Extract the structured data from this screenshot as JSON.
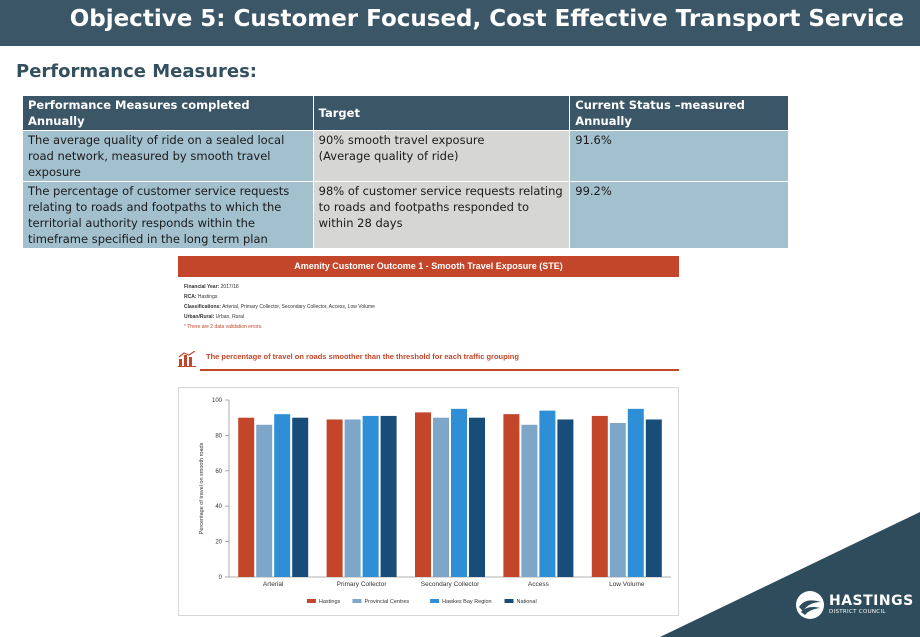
{
  "slide": {
    "title": "Objective 5: Customer Focused, Cost Effective Transport Service",
    "subtitle": "Performance Measures:"
  },
  "table": {
    "headers": [
      "Performance Measures completed Annually",
      "Target",
      "Current Status –measured Annually"
    ],
    "rows": [
      {
        "measure": "The average quality of ride on a sealed local road network, measured by smooth travel exposure",
        "target_line1": "90% smooth travel exposure",
        "target_line2": "(Average quality of ride)",
        "status": "91.6%"
      },
      {
        "measure": "The percentage of customer service requests relating to roads and footpaths to which the territorial authority responds within the timeframe specified in the long term plan",
        "target_line1": "98% of customer service requests relating to roads and footpaths responded to within 28 days",
        "target_line2": "",
        "status": "99.2%"
      }
    ]
  },
  "panel": {
    "header": "Amenity Customer Outcome 1 - Smooth Travel Exposure (STE)",
    "meta": {
      "financial_year_label": "Financial Year:",
      "financial_year": "2017/18",
      "rca_label": "RCA:",
      "rca": "Hastings",
      "classifications_label": "Classifications:",
      "classifications": "Arterial, Primary Collector, Secondary Collector, Access, Low Volume",
      "urban_rural_label": "Urban/Rural:",
      "urban_rural": "Urban, Rural",
      "warning": "* There are 2 data validation errors."
    },
    "section_title": "The percentage of travel on roads smoother than the threshold for each traffic grouping",
    "section_icon": "bar-chart-icon"
  },
  "chart_data": {
    "type": "bar",
    "ylabel": "Percentage of travel on smooth roads",
    "ylim": [
      0,
      100
    ],
    "yticks": [
      0,
      20,
      40,
      60,
      80,
      100
    ],
    "categories": [
      "Arterial",
      "Primary Collector",
      "Secondary Collector",
      "Access",
      "Low Volume"
    ],
    "series": [
      {
        "name": "Hastings",
        "color": "#c3462a",
        "values": [
          90,
          89,
          93,
          92,
          91
        ]
      },
      {
        "name": "Provincial Centres",
        "color": "#7ea6c9",
        "values": [
          86,
          89,
          90,
          86,
          87
        ]
      },
      {
        "name": "Hawkes Bay Region",
        "color": "#2f8fd6",
        "values": [
          92,
          91,
          95,
          94,
          95
        ]
      },
      {
        "name": "National",
        "color": "#184d7a",
        "values": [
          90,
          91,
          90,
          89,
          89
        ]
      }
    ],
    "legend": "bottom",
    "grid": false
  },
  "logo": {
    "name": "HASTINGS",
    "subname": "DISTRICT COUNCIL",
    "color": "#2e4c5c"
  }
}
